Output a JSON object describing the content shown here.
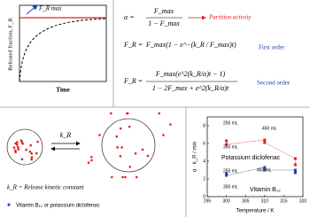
{
  "plot1": {
    "y_label": "Released fraction, F_R",
    "x_label": "Time",
    "annotation": "F_R max"
  },
  "equations": [
    {
      "lhs": "α =",
      "num": "F_max",
      "den": "1 − F_max",
      "note": "Partition activity"
    },
    {
      "lhs": "F_R =",
      "body": "F_max(1 − e^−(k_R / F_max)t)",
      "note": "First order"
    },
    {
      "lhs": "F_R =",
      "num": "F_max(e^2(k_R/α)t − 1)",
      "den": "1 − 2F_max + e^2(k_R/α)t",
      "note": "Second order"
    }
  ],
  "diagram": {
    "rate": "k_R",
    "definition": "k_R = Release kinetic constant",
    "legend": "Vitamin B₁₂ or potassium diclofenac"
  },
  "chart_data": {
    "type": "scatter",
    "x_label": "Temperature / K",
    "y_label": "α · k_R / min",
    "series": [
      {
        "name": "Potassium diclofenac",
        "color": "#e02020",
        "x": [
          300,
          300,
          310,
          310,
          318,
          318
        ],
        "values": [
          6.3,
          5.9,
          6.4,
          6.1,
          4.3,
          3.6
        ]
      },
      {
        "name": "Vitamin B₁₂",
        "color": "#2040b0",
        "x": [
          300,
          300,
          310,
          310,
          318,
          318
        ],
        "values": [
          2.6,
          2.4,
          3.3,
          3.0,
          3.0,
          2.7
        ]
      }
    ],
    "annotations": [
      "250 mL",
      "350 mL",
      "450 mL",
      "250 mL",
      "350 mL",
      "450 mL"
    ],
    "xlim": [
      295,
      320
    ],
    "xticks": [
      295,
      300,
      305,
      310,
      315,
      320
    ],
    "ylim": [
      0,
      9
    ],
    "yticks": [
      0,
      2,
      4,
      6,
      8
    ]
  }
}
